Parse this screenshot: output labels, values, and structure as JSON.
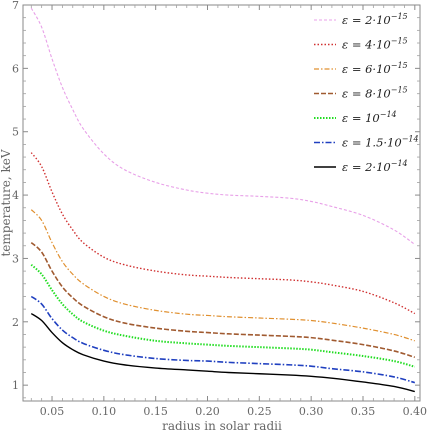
{
  "chart_data": {
    "type": "line",
    "xlabel": "radius in solar radii",
    "ylabel": "temperature, keV",
    "xlim": [
      0.022,
      0.405
    ],
    "ylim": [
      0.75,
      7.0
    ],
    "xticks": [
      "0.05",
      "0.10",
      "0.15",
      "0.20",
      "0.25",
      "0.30",
      "0.35",
      "0.40"
    ],
    "xtick_values": [
      0.05,
      0.1,
      0.15,
      0.2,
      0.25,
      0.3,
      0.35,
      0.4
    ],
    "yticks": [
      "1",
      "2",
      "3",
      "4",
      "5",
      "6",
      "7"
    ],
    "ytick_values": [
      1,
      2,
      3,
      4,
      5,
      6,
      7
    ],
    "grid": false,
    "legend_position": "top-right",
    "x": [
      0.03,
      0.04,
      0.05,
      0.06,
      0.07,
      0.08,
      0.1,
      0.12,
      0.15,
      0.18,
      0.2,
      0.22,
      0.25,
      0.28,
      0.3,
      0.32,
      0.35,
      0.38,
      0.4
    ],
    "series": [
      {
        "legend": {
          "pre": "ε = 2·10",
          "exp": "−15"
        },
        "color": "#e8a0e8",
        "dash": "3,2",
        "width": 1.1,
        "values": [
          6.95,
          6.65,
          6.15,
          5.7,
          5.35,
          5.05,
          4.65,
          4.4,
          4.2,
          4.08,
          4.03,
          4.0,
          3.98,
          3.95,
          3.9,
          3.82,
          3.68,
          3.45,
          3.22
        ]
      },
      {
        "legend": {
          "pre": "ε = 4·10",
          "exp": "−15"
        },
        "color": "#d03030",
        "dash": "1.5,2",
        "width": 1.4,
        "values": [
          4.67,
          4.45,
          4.05,
          3.7,
          3.45,
          3.25,
          3.02,
          2.9,
          2.8,
          2.74,
          2.72,
          2.7,
          2.68,
          2.66,
          2.63,
          2.58,
          2.48,
          2.3,
          2.13
        ]
      },
      {
        "legend": {
          "pre": "ε = 6·10",
          "exp": "−15"
        },
        "color": "#e09030",
        "dash": "5,2,1.5,2",
        "width": 1.2,
        "values": [
          3.77,
          3.6,
          3.25,
          2.95,
          2.75,
          2.6,
          2.4,
          2.28,
          2.18,
          2.12,
          2.1,
          2.08,
          2.06,
          2.04,
          2.02,
          1.98,
          1.9,
          1.8,
          1.7
        ]
      },
      {
        "legend": {
          "pre": "ε = 8·10",
          "exp": "−15"
        },
        "color": "#a05a30",
        "dash": "5,2",
        "width": 1.6,
        "values": [
          3.25,
          3.1,
          2.8,
          2.55,
          2.38,
          2.25,
          2.08,
          1.98,
          1.9,
          1.85,
          1.83,
          1.81,
          1.79,
          1.77,
          1.75,
          1.71,
          1.64,
          1.54,
          1.44
        ]
      },
      {
        "legend": {
          "pre": "ε = 10",
          "exp": "−14"
        },
        "color": "#22dd22",
        "dash": "1.5,1.5",
        "width": 2.0,
        "values": [
          2.9,
          2.75,
          2.5,
          2.28,
          2.12,
          2.0,
          1.86,
          1.78,
          1.7,
          1.66,
          1.64,
          1.62,
          1.6,
          1.58,
          1.56,
          1.52,
          1.46,
          1.38,
          1.29
        ]
      },
      {
        "legend": {
          "pre": "ε = 1.5·10",
          "exp": "−14"
        },
        "color": "#2040c0",
        "dash": "6,2,1.5,2",
        "width": 1.6,
        "values": [
          2.4,
          2.28,
          2.05,
          1.87,
          1.75,
          1.66,
          1.55,
          1.48,
          1.42,
          1.39,
          1.38,
          1.36,
          1.34,
          1.32,
          1.3,
          1.26,
          1.21,
          1.13,
          1.04
        ]
      },
      {
        "legend": {
          "pre": "ε = 2·10",
          "exp": "−14"
        },
        "color": "#000000",
        "dash": "",
        "width": 1.4,
        "values": [
          2.13,
          2.02,
          1.83,
          1.67,
          1.56,
          1.48,
          1.38,
          1.32,
          1.27,
          1.24,
          1.22,
          1.2,
          1.18,
          1.16,
          1.14,
          1.11,
          1.05,
          0.98,
          0.9
        ]
      }
    ]
  }
}
